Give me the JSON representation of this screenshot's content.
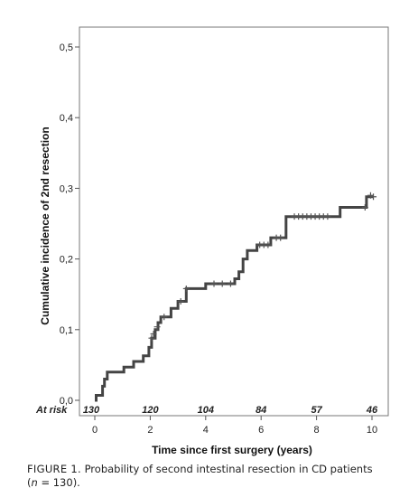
{
  "chart_data": {
    "type": "line",
    "subtype": "step",
    "xlabel": "Time since first surgery (years)",
    "ylabel": "Cumulative incidence of 2nd resection",
    "xlim": [
      -0.5,
      10.5
    ],
    "ylim": [
      0,
      0.52
    ],
    "x_ticks": [
      0,
      2,
      4,
      6,
      8,
      10
    ],
    "x_tick_labels": [
      "0",
      "2",
      "4",
      "6",
      "8",
      "10"
    ],
    "y_ticks": [
      0,
      0.1,
      0.2,
      0.3,
      0.4,
      0.5
    ],
    "y_tick_labels": [
      "0,0",
      "0,1",
      "0,2",
      "0,3",
      "0,4",
      "0,5"
    ],
    "grid": false,
    "line_color": "#444444",
    "series": [
      {
        "steps": [
          [
            0,
            0
          ],
          [
            0.05,
            0.007
          ],
          [
            0.28,
            0.02
          ],
          [
            0.35,
            0.03
          ],
          [
            0.45,
            0.04
          ],
          [
            1.05,
            0.047
          ],
          [
            1.4,
            0.055
          ],
          [
            1.75,
            0.063
          ],
          [
            1.95,
            0.075
          ],
          [
            2.05,
            0.088
          ],
          [
            2.18,
            0.1
          ],
          [
            2.28,
            0.11
          ],
          [
            2.38,
            0.118
          ],
          [
            2.75,
            0.13
          ],
          [
            3.0,
            0.14
          ],
          [
            3.3,
            0.158
          ],
          [
            4.0,
            0.165
          ],
          [
            5.05,
            0.172
          ],
          [
            5.2,
            0.182
          ],
          [
            5.35,
            0.2
          ],
          [
            5.5,
            0.212
          ],
          [
            5.85,
            0.22
          ],
          [
            6.35,
            0.23
          ],
          [
            6.9,
            0.26
          ],
          [
            8.85,
            0.273
          ],
          [
            9.8,
            0.288
          ],
          [
            10.05,
            0.288
          ]
        ],
        "censor_marks": [
          [
            2.05,
            0.088
          ],
          [
            2.12,
            0.094
          ],
          [
            2.25,
            0.104
          ],
          [
            2.5,
            0.118
          ],
          [
            3.1,
            0.14
          ],
          [
            3.3,
            0.158
          ],
          [
            4.3,
            0.165
          ],
          [
            4.6,
            0.165
          ],
          [
            4.9,
            0.165
          ],
          [
            5.95,
            0.22
          ],
          [
            6.1,
            0.22
          ],
          [
            6.25,
            0.22
          ],
          [
            6.55,
            0.23
          ],
          [
            6.7,
            0.23
          ],
          [
            7.2,
            0.26
          ],
          [
            7.35,
            0.26
          ],
          [
            7.5,
            0.26
          ],
          [
            7.65,
            0.26
          ],
          [
            7.8,
            0.26
          ],
          [
            7.95,
            0.26
          ],
          [
            8.1,
            0.26
          ],
          [
            8.25,
            0.26
          ],
          [
            8.4,
            0.26
          ],
          [
            9.75,
            0.273
          ],
          [
            9.95,
            0.29
          ],
          [
            10.05,
            0.288
          ]
        ]
      }
    ],
    "at_risk": {
      "label": "At risk",
      "x": [
        0,
        2,
        4,
        6,
        8,
        10
      ],
      "values": [
        "130",
        "120",
        "104",
        "84",
        "57",
        "46"
      ]
    }
  },
  "caption": {
    "figure_label": "FIGURE 1.",
    "text": " Probability of second intestinal resection in CD patients",
    "line2_open": "(",
    "n_symbol": "n",
    "line2_rest": " = 130)."
  }
}
